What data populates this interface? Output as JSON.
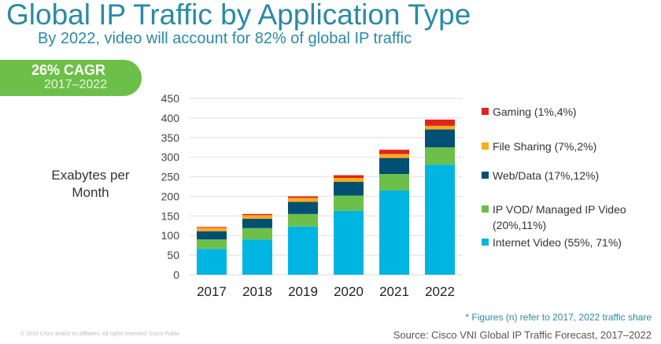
{
  "title": "Global IP Traffic by Application Type",
  "subtitle": "By 2022, video will account for 82% of global IP traffic",
  "badge": {
    "main": "26% CAGR",
    "sub": "2017–2022"
  },
  "footnote": "* Figures (n) refer to 2017, 2022 traffic share",
  "source": "Source: Cisco VNI Global IP Traffic Forecast, 2017–2022",
  "copyright": "© 2018  Cisco and/or its affiliates. All rights reserved.   Cisco Public",
  "chart_data": {
    "type": "bar",
    "stacked": true,
    "ylabel": "Exabytes per Month",
    "ylim": [
      0,
      450
    ],
    "yticks": [
      0,
      50,
      100,
      150,
      200,
      250,
      300,
      350,
      400,
      450
    ],
    "grid": true,
    "legend_position": "right",
    "categories": [
      "2017",
      "2018",
      "2019",
      "2020",
      "2021",
      "2022"
    ],
    "series": [
      {
        "name": "Internet Video (55%, 71%)",
        "color": "#00b5e2",
        "values": [
          66,
          90,
          123,
          163,
          215,
          281
        ]
      },
      {
        "name": "IP VOD/ Managed IP Video (20%,11%)",
        "color": "#6cc04a",
        "values": [
          24,
          29,
          32,
          39,
          42,
          44
        ]
      },
      {
        "name": "Web/Data (17%,12%)",
        "color": "#005073",
        "values": [
          21,
          24,
          31,
          35,
          41,
          46
        ]
      },
      {
        "name": "File Sharing (7%,2%)",
        "color": "#fbab18",
        "values": [
          9,
          9,
          10,
          10,
          10,
          9
        ]
      },
      {
        "name": "Gaming (1%,4%)",
        "color": "#e2231a",
        "values": [
          2,
          3,
          4,
          7,
          11,
          16
        ]
      }
    ]
  }
}
